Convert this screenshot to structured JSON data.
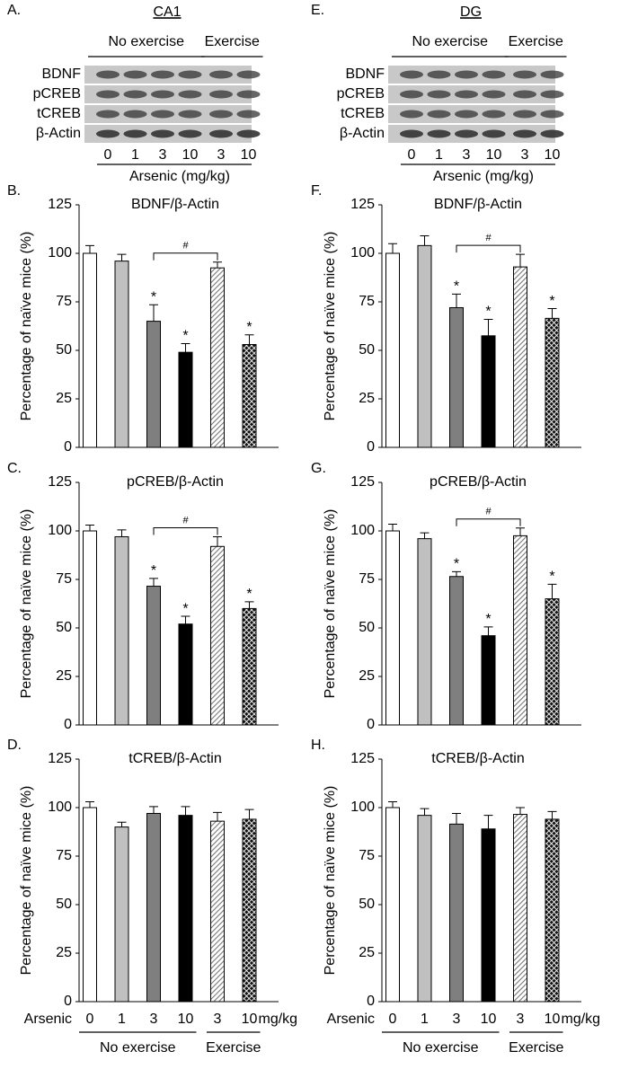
{
  "blots": [
    {
      "label": "A.",
      "title": "CA1",
      "groups": [
        "No exercise",
        "Exercise"
      ],
      "group_sizes": [
        4,
        2
      ],
      "rows": [
        "BDNF",
        "pCREB",
        "tCREB",
        "β-Actin"
      ],
      "doses": [
        0,
        1,
        3,
        10,
        3,
        10
      ],
      "xlabel": "Arsenic (mg/kg)"
    },
    {
      "label": "E.",
      "title": "DG",
      "groups": [
        "No exercise",
        "Exercise"
      ],
      "group_sizes": [
        4,
        2
      ],
      "rows": [
        "BDNF",
        "pCREB",
        "tCREB",
        "β-Actin"
      ],
      "doses": [
        0,
        1,
        3,
        10,
        3,
        10
      ],
      "xlabel": "Arsenic (mg/kg)"
    }
  ],
  "chart_data": [
    {
      "type": "bar",
      "label": "B.",
      "title": "BDNF/β-Actin",
      "ylabel": "Percentage of naïve mice (%)",
      "categories": [
        null,
        null,
        null,
        null,
        null,
        null
      ],
      "values": [
        100,
        96,
        65,
        49,
        92.5,
        53
      ],
      "errors": [
        4,
        3.5,
        8.5,
        4.5,
        3,
        5
      ],
      "stars": [
        null,
        null,
        "*",
        "*",
        null,
        "*"
      ],
      "bracket": {
        "between": [
          2,
          4
        ],
        "text": "#"
      },
      "fills": [
        "#ffffff",
        "#c0c0c0",
        "#7f7f7f",
        "#000000",
        "hatch",
        "crosshatch"
      ],
      "ylim": [
        0,
        125
      ],
      "yticks": [
        0,
        25,
        50,
        75,
        100,
        125
      ]
    },
    {
      "type": "bar",
      "label": "C.",
      "title": "pCREB/β-Actin",
      "ylabel": "Percentage of naïve mice (%)",
      "categories": [
        null,
        null,
        null,
        null,
        null,
        null
      ],
      "values": [
        100,
        97,
        71.5,
        52,
        92,
        60
      ],
      "errors": [
        3,
        3.5,
        4,
        4,
        5,
        3.5
      ],
      "stars": [
        null,
        null,
        "*",
        "*",
        null,
        "*"
      ],
      "bracket": {
        "between": [
          2,
          4
        ],
        "text": "#"
      },
      "fills": [
        "#ffffff",
        "#c0c0c0",
        "#7f7f7f",
        "#000000",
        "hatch",
        "crosshatch"
      ],
      "ylim": [
        0,
        125
      ],
      "yticks": [
        0,
        25,
        50,
        75,
        100,
        125
      ]
    },
    {
      "type": "bar",
      "label": "D.",
      "title": "tCREB/β-Actin",
      "ylabel": "Percentage of naïve mice (%)",
      "xlabel": "Arsenic",
      "xunit": "mg/kg",
      "groups": [
        "No exercise",
        "Exercise"
      ],
      "group_sizes": [
        4,
        2
      ],
      "categories": [
        "0",
        "1",
        "3",
        "10",
        "3",
        "10"
      ],
      "values": [
        100,
        90,
        97,
        96,
        93,
        94
      ],
      "errors": [
        3,
        2.5,
        3.5,
        4.5,
        4.5,
        5
      ],
      "fills": [
        "#ffffff",
        "#c0c0c0",
        "#7f7f7f",
        "#000000",
        "hatch",
        "crosshatch"
      ],
      "ylim": [
        0,
        125
      ],
      "yticks": [
        0,
        25,
        50,
        75,
        100,
        125
      ]
    },
    {
      "type": "bar",
      "label": "F.",
      "title": "BDNF/β-Actin",
      "ylabel": "Percentage of naïve mice (%)",
      "categories": [
        null,
        null,
        null,
        null,
        null,
        null
      ],
      "values": [
        100,
        104,
        72,
        57.5,
        93,
        66.5
      ],
      "errors": [
        5,
        5,
        7,
        8.5,
        6.5,
        5
      ],
      "stars": [
        null,
        null,
        "*",
        "*",
        null,
        "*"
      ],
      "bracket": {
        "between": [
          2,
          4
        ],
        "text": "#"
      },
      "fills": [
        "#ffffff",
        "#c0c0c0",
        "#7f7f7f",
        "#000000",
        "hatch",
        "crosshatch"
      ],
      "ylim": [
        0,
        125
      ],
      "yticks": [
        0,
        25,
        50,
        75,
        100,
        125
      ]
    },
    {
      "type": "bar",
      "label": "G.",
      "title": "pCREB/β-Actin",
      "ylabel": "Percentage of naïve mice (%)",
      "categories": [
        null,
        null,
        null,
        null,
        null,
        null
      ],
      "values": [
        100,
        96,
        76.5,
        46,
        97.5,
        65
      ],
      "errors": [
        3.5,
        3,
        2.5,
        4.5,
        4,
        7.5
      ],
      "stars": [
        null,
        null,
        "*",
        "*",
        null,
        "*"
      ],
      "bracket": {
        "between": [
          2,
          4
        ],
        "text": "#"
      },
      "fills": [
        "#ffffff",
        "#c0c0c0",
        "#7f7f7f",
        "#000000",
        "hatch",
        "crosshatch"
      ],
      "ylim": [
        0,
        125
      ],
      "yticks": [
        0,
        25,
        50,
        75,
        100,
        125
      ]
    },
    {
      "type": "bar",
      "label": "H.",
      "title": "tCREB/β-Actin",
      "ylabel": "Percentage of naïve mice (%)",
      "xlabel": "Arsenic",
      "xunit": "mg/kg",
      "groups": [
        "No exercise",
        "Exercise"
      ],
      "group_sizes": [
        4,
        2
      ],
      "categories": [
        "0",
        "1",
        "3",
        "10",
        "3",
        "10"
      ],
      "values": [
        100,
        96,
        91.5,
        89,
        96.5,
        94
      ],
      "errors": [
        3,
        3.5,
        5.5,
        7,
        3.5,
        4
      ],
      "fills": [
        "#ffffff",
        "#c0c0c0",
        "#7f7f7f",
        "#000000",
        "hatch",
        "crosshatch"
      ],
      "ylim": [
        0,
        125
      ],
      "yticks": [
        0,
        25,
        50,
        75,
        100,
        125
      ]
    }
  ]
}
